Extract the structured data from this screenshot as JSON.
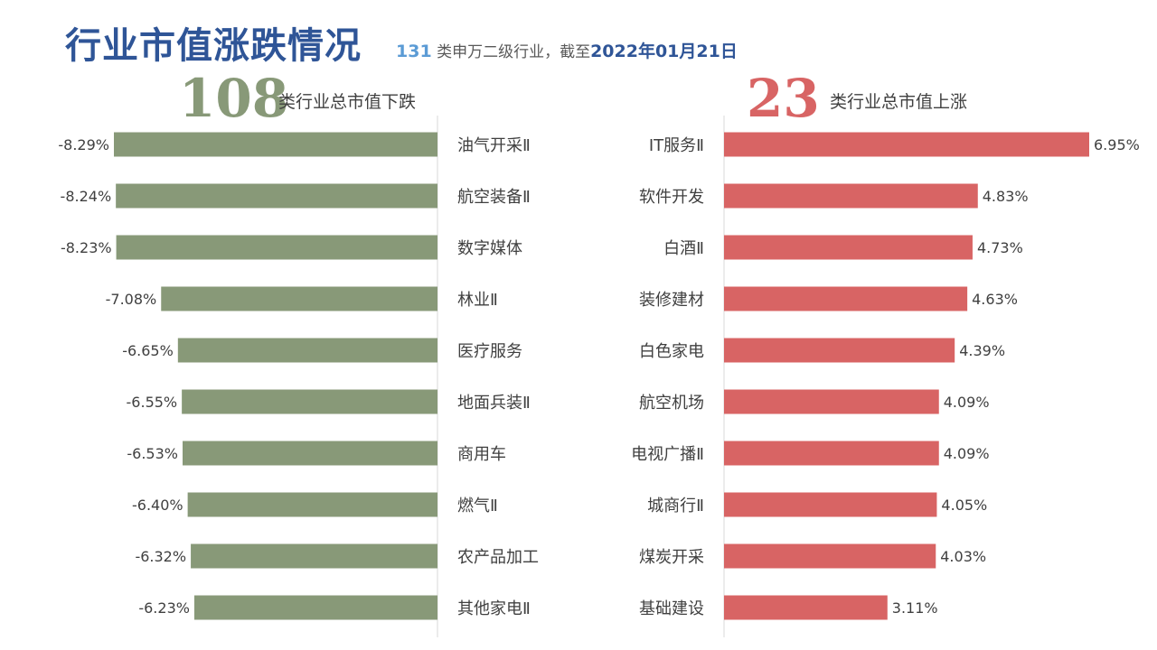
{
  "header": {
    "title": "行业市值涨跌情况",
    "subtitle_count": "131",
    "subtitle_text": "类申万二级行业，截至",
    "subtitle_date": "2022年01月21日"
  },
  "summary": {
    "down_count": "108",
    "down_label": "类行业总市值下跌",
    "up_count": "23",
    "up_label": "类行业总市值上涨"
  },
  "colors": {
    "down": "#889978",
    "up": "#d86464",
    "axis": "#d9d9d9"
  },
  "chart_data": [
    {
      "type": "bar",
      "orientation": "horizontal",
      "categories": [
        "油气开采Ⅱ",
        "航空装备Ⅱ",
        "数字媒体",
        "林业Ⅱ",
        "医疗服务",
        "地面兵装Ⅱ",
        "商用车",
        "燃气Ⅱ",
        "农产品加工",
        "其他家电Ⅱ"
      ],
      "values": [
        -8.29,
        -8.24,
        -8.23,
        -7.08,
        -6.65,
        -6.55,
        -6.53,
        -6.4,
        -6.32,
        -6.23
      ],
      "value_labels": [
        "-8.29%",
        "-8.24%",
        "-8.23%",
        "-7.08%",
        "-6.65%",
        "-6.55%",
        "-6.53%",
        "-6.40%",
        "-6.32%",
        "-6.23%"
      ],
      "unit": "%",
      "xlim": [
        -8.29,
        0
      ]
    },
    {
      "type": "bar",
      "orientation": "horizontal",
      "categories": [
        "IT服务Ⅱ",
        "软件开发",
        "白酒Ⅱ",
        "装修建材",
        "白色家电",
        "航空机场",
        "电视广播Ⅱ",
        "城商行Ⅱ",
        "煤炭开采",
        "基础建设"
      ],
      "values": [
        6.95,
        4.83,
        4.73,
        4.63,
        4.39,
        4.09,
        4.09,
        4.05,
        4.03,
        3.11
      ],
      "value_labels": [
        "6.95%",
        "4.83%",
        "4.73%",
        "4.63%",
        "4.39%",
        "4.09%",
        "4.09%",
        "4.05%",
        "4.03%",
        "3.11%"
      ],
      "unit": "%",
      "xlim": [
        0,
        6.95
      ]
    }
  ]
}
